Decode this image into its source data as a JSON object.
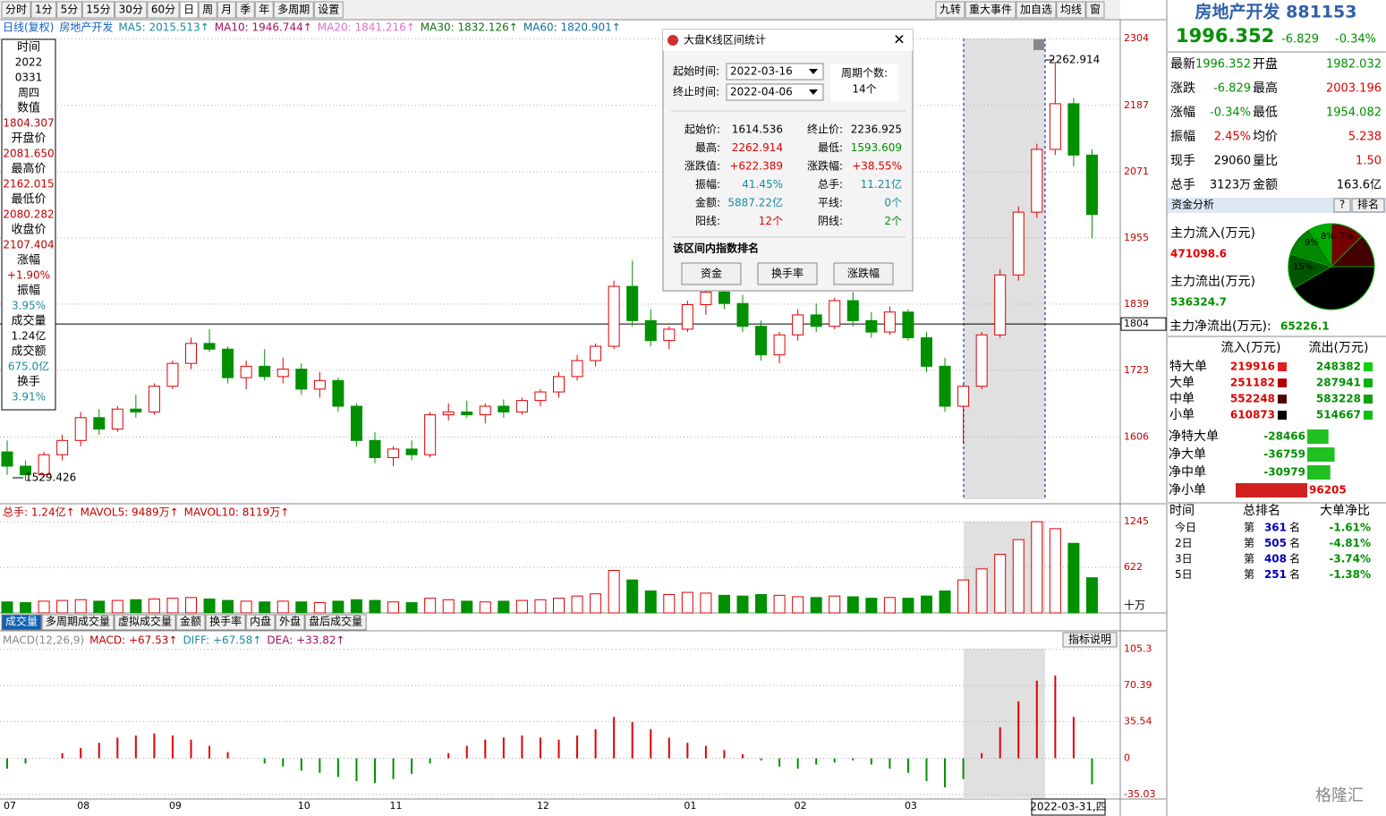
{
  "toolbar": {
    "left": [
      "分时",
      "1分",
      "5分",
      "15分",
      "30分",
      "60分",
      "日",
      "周",
      "月",
      "季",
      "年",
      "多周期",
      "设置"
    ],
    "right": [
      "九转",
      "重大事件",
      "加自选",
      "均线",
      "窗"
    ]
  },
  "price_header": [
    {
      "text": "日线(复权)",
      "color": "#1060c0"
    },
    {
      "text": "房地产开发",
      "color": "#1060c0"
    },
    {
      "text": "MA5: 2015.513↑",
      "color": "#1a8aa0"
    },
    {
      "text": "MA10: 1946.744↑",
      "color": "#a01060"
    },
    {
      "text": "MA20: 1841.216↑",
      "color": "#e070d0"
    },
    {
      "text": "MA30: 1832.126↑",
      "color": "#107010"
    },
    {
      "text": "MA60: 1820.901↑",
      "color": "#1070a0"
    }
  ],
  "info": [
    {
      "label": "时间",
      "value": [
        "2022",
        "0331",
        "周四"
      ],
      "color": "#000"
    },
    {
      "label": "数值",
      "value": [
        "1804.307"
      ],
      "color": "#c00000"
    },
    {
      "label": "开盘价",
      "value": [
        "2081.650"
      ],
      "color": "#c00000"
    },
    {
      "label": "最高价",
      "value": [
        "2162.015"
      ],
      "color": "#c00000"
    },
    {
      "label": "最低价",
      "value": [
        "2080.282"
      ],
      "color": "#c00000"
    },
    {
      "label": "收盘价",
      "value": [
        "2107.404"
      ],
      "color": "#c00000"
    },
    {
      "label": "涨幅",
      "value": [
        "+1.90%"
      ],
      "color": "#c00000"
    },
    {
      "label": "振幅",
      "value": [
        "3.95%"
      ],
      "color": "#1a8aa0"
    },
    {
      "label": "成交量",
      "value": [
        "1.24亿"
      ],
      "color": "#000"
    },
    {
      "label": "成交额",
      "value": [
        "675.0亿"
      ],
      "color": "#1a8aa0"
    },
    {
      "label": "换手",
      "value": [
        "3.91%"
      ],
      "color": "#1a8aa0"
    }
  ],
  "annotations": {
    "high": "2262.914",
    "low": "1529.426"
  },
  "chart_data": {
    "type": "candlestick",
    "categories": [
      "07",
      null,
      null,
      null,
      "08",
      null,
      null,
      null,
      null,
      "09",
      null,
      null,
      null,
      null,
      null,
      null,
      "10",
      null,
      null,
      null,
      null,
      "11",
      null,
      null,
      null,
      null,
      null,
      null,
      null,
      "12",
      null,
      null,
      null,
      null,
      null,
      null,
      null,
      "01",
      null,
      null,
      null,
      null,
      null,
      "02",
      null,
      null,
      null,
      null,
      null,
      "03",
      null,
      null,
      null,
      null,
      null,
      null,
      null,
      null,
      null,
      null
    ],
    "ohlc": [
      [
        1580,
        1600,
        1540,
        1555
      ],
      [
        1555,
        1565,
        1529.4,
        1540
      ],
      [
        1540,
        1580,
        1535,
        1575
      ],
      [
        1575,
        1610,
        1565,
        1600
      ],
      [
        1600,
        1650,
        1590,
        1640
      ],
      [
        1640,
        1655,
        1610,
        1620
      ],
      [
        1620,
        1660,
        1615,
        1655
      ],
      [
        1655,
        1680,
        1640,
        1650
      ],
      [
        1650,
        1700,
        1645,
        1695
      ],
      [
        1695,
        1740,
        1690,
        1735
      ],
      [
        1735,
        1780,
        1725,
        1770
      ],
      [
        1770,
        1795,
        1755,
        1760
      ],
      [
        1760,
        1765,
        1700,
        1710
      ],
      [
        1710,
        1740,
        1690,
        1730
      ],
      [
        1730,
        1760,
        1705,
        1712
      ],
      [
        1712,
        1745,
        1700,
        1725
      ],
      [
        1725,
        1735,
        1680,
        1690
      ],
      [
        1690,
        1720,
        1675,
        1705
      ],
      [
        1705,
        1710,
        1650,
        1660
      ],
      [
        1660,
        1665,
        1590,
        1600
      ],
      [
        1600,
        1615,
        1560,
        1570
      ],
      [
        1570,
        1590,
        1555,
        1585
      ],
      [
        1585,
        1600,
        1565,
        1575
      ],
      [
        1575,
        1650,
        1570,
        1645
      ],
      [
        1645,
        1665,
        1635,
        1650
      ],
      [
        1650,
        1670,
        1640,
        1645
      ],
      [
        1645,
        1665,
        1630,
        1660
      ],
      [
        1660,
        1672,
        1640,
        1650
      ],
      [
        1650,
        1675,
        1645,
        1670
      ],
      [
        1670,
        1690,
        1660,
        1685
      ],
      [
        1685,
        1720,
        1675,
        1712
      ],
      [
        1712,
        1750,
        1705,
        1740
      ],
      [
        1740,
        1770,
        1730,
        1765
      ],
      [
        1765,
        1880,
        1760,
        1870
      ],
      [
        1870,
        1915,
        1800,
        1810
      ],
      [
        1810,
        1830,
        1765,
        1775
      ],
      [
        1775,
        1800,
        1760,
        1795
      ],
      [
        1795,
        1845,
        1790,
        1838
      ],
      [
        1838,
        1880,
        1820,
        1860
      ],
      [
        1860,
        1870,
        1830,
        1840
      ],
      [
        1840,
        1855,
        1790,
        1800
      ],
      [
        1800,
        1810,
        1740,
        1750
      ],
      [
        1750,
        1790,
        1735,
        1785
      ],
      [
        1785,
        1830,
        1775,
        1820
      ],
      [
        1820,
        1840,
        1790,
        1800
      ],
      [
        1800,
        1850,
        1795,
        1845
      ],
      [
        1845,
        1860,
        1800,
        1810
      ],
      [
        1810,
        1825,
        1780,
        1790
      ],
      [
        1790,
        1835,
        1785,
        1825
      ],
      [
        1825,
        1830,
        1775,
        1780
      ],
      [
        1780,
        1790,
        1720,
        1730
      ],
      [
        1730,
        1745,
        1650,
        1660
      ],
      [
        1660,
        1700,
        1593.6,
        1695
      ],
      [
        1695,
        1790,
        1690,
        1785
      ],
      [
        1785,
        1900,
        1780,
        1890
      ],
      [
        1890,
        2010,
        1880,
        2000
      ],
      [
        2000,
        2120,
        1990,
        2110
      ],
      [
        2110,
        2262.9,
        2100,
        2190
      ],
      [
        2190,
        2200,
        2080,
        2100
      ],
      [
        2100,
        2110,
        1954,
        1996
      ]
    ],
    "up_color": "#e00000",
    "down_color": "#009000",
    "ylim": [
      1497,
      2309
    ],
    "yticks": [
      2304,
      2187,
      2071,
      1955,
      1839,
      1804,
      1723,
      1606
    ],
    "grid": true,
    "volume": [
      150,
      140,
      160,
      170,
      180,
      160,
      170,
      180,
      190,
      200,
      210,
      190,
      170,
      160,
      150,
      160,
      150,
      140,
      160,
      180,
      170,
      150,
      140,
      200,
      180,
      160,
      150,
      160,
      170,
      180,
      200,
      230,
      260,
      580,
      450,
      300,
      250,
      280,
      270,
      240,
      230,
      250,
      240,
      220,
      210,
      230,
      220,
      200,
      210,
      200,
      230,
      300,
      450,
      600,
      800,
      1000,
      1245,
      1150,
      950,
      480
    ],
    "vol_ylim": [
      0,
      1307
    ],
    "vol_yticks": [
      1245,
      622
    ],
    "macd": [
      -10,
      -5,
      0,
      5,
      10,
      15,
      20,
      22,
      24,
      22,
      18,
      12,
      6,
      0,
      -5,
      -8,
      -12,
      -14,
      -18,
      -22,
      -24,
      -20,
      -15,
      -5,
      5,
      12,
      18,
      20,
      22,
      20,
      18,
      22,
      28,
      40,
      35,
      28,
      20,
      15,
      12,
      8,
      4,
      -2,
      -8,
      -10,
      -6,
      -4,
      -2,
      -6,
      -10,
      -14,
      -22,
      -28,
      -20,
      5,
      30,
      55,
      75,
      80,
      40,
      -25
    ],
    "macd_ylim": [
      -39.3,
      120.6
    ],
    "macd_yticks": [
      105.3,
      70.39,
      35.54,
      0,
      -35.03
    ]
  },
  "x_axis": {
    "cursor_label": "2022-03-31,四"
  },
  "volume_panel": {
    "header": [
      {
        "text": "总手: 1.24亿↑",
        "color": "#c00000"
      },
      {
        "text": "MAVOL5: 9489万↑",
        "color": "#c00000"
      },
      {
        "text": "MAVOL10: 8119万↑",
        "color": "#c00000"
      }
    ],
    "unit": "十万",
    "tabs": [
      "成交量",
      "多周期成交量",
      "虚拟成交量",
      "金额",
      "换手率",
      "内盘",
      "外盘",
      "盘后成交量"
    ]
  },
  "macd_panel": {
    "header": [
      {
        "text": "MACD(12,26,9)",
        "color": "#888"
      },
      {
        "text": "MACD: +67.53↑",
        "color": "#c00000"
      },
      {
        "text": "DIFF: +67.58↑",
        "color": "#1a8aa0"
      },
      {
        "text": "DEA: +33.82↑",
        "color": "#a01060"
      }
    ],
    "help": "指标说明"
  },
  "watermark": "格隆汇",
  "dialog": {
    "title": "大盘K线区间统计",
    "start_label": "起始时间:",
    "start_date": "2022-03-16",
    "end_label": "终止时间:",
    "end_date": "2022-04-06",
    "period_label": "周期个数:",
    "period_count": "14个",
    "stats": [
      [
        {
          "label": "起始价:",
          "value": "1614.536",
          "color": "#000"
        },
        {
          "label": "终止价:",
          "value": "2236.925",
          "color": "#000"
        }
      ],
      [
        {
          "label": "最高:",
          "value": "2262.914",
          "color": "#e00000"
        },
        {
          "label": "最低:",
          "value": "1593.609",
          "color": "#009000"
        }
      ],
      [
        {
          "label": "涨跌值:",
          "value": "+622.389",
          "color": "#e00000"
        },
        {
          "label": "涨跌幅:",
          "value": "+38.55%",
          "color": "#e00000"
        }
      ],
      [
        {
          "label": "振幅:",
          "value": "41.45%",
          "color": "#1a8aa0"
        },
        {
          "label": "总手:",
          "value": "11.21亿",
          "color": "#1a8aa0"
        }
      ],
      [
        {
          "label": "金额:",
          "value": "5887.22亿",
          "color": "#1a8aa0"
        },
        {
          "label": "平线:",
          "value": "0个",
          "color": "#1a8aa0"
        }
      ],
      [
        {
          "label": "阳线:",
          "value": "12个",
          "color": "#e00000"
        },
        {
          "label": "阴线:",
          "value": "2个",
          "color": "#009000"
        }
      ]
    ],
    "rank_heading": "该区间内指数排名",
    "buttons": [
      "资金",
      "换手率",
      "涨跌幅"
    ]
  },
  "quote": {
    "title": "房地产开发 881153",
    "price": "1996.352",
    "change": "-6.829",
    "change_pct": "-0.34%",
    "rows": [
      [
        {
          "label": "最新",
          "value": "1996.352",
          "color": "#009000"
        },
        {
          "label": "开盘",
          "value": "1982.032",
          "color": "#009000"
        }
      ],
      [
        {
          "label": "涨跌",
          "value": "-6.829",
          "color": "#009000"
        },
        {
          "label": "最高",
          "value": "2003.196",
          "color": "#e00000"
        }
      ],
      [
        {
          "label": "涨幅",
          "value": "-0.34%",
          "color": "#009000"
        },
        {
          "label": "最低",
          "value": "1954.082",
          "color": "#009000"
        }
      ],
      [
        {
          "label": "振幅",
          "value": "2.45%",
          "color": "#e00000"
        },
        {
          "label": "均价",
          "value": "5.238",
          "color": "#e00000"
        }
      ],
      [
        {
          "label": "现手",
          "value": "29060",
          "color": "#000"
        },
        {
          "label": "量比",
          "value": "1.50",
          "color": "#e00000"
        }
      ],
      [
        {
          "label": "总手",
          "value": "3123万",
          "color": "#000"
        },
        {
          "label": "金额",
          "value": "163.6亿",
          "color": "#000"
        }
      ]
    ]
  },
  "funds": {
    "title": "资金分析",
    "help": "?",
    "rank": "排名",
    "inflow_label": "主力流入(万元)",
    "inflow": "471098.6",
    "outflow_label": "主力流出(万元)",
    "outflow": "536324.7",
    "pie_labels": [
      "8%",
      "7%",
      "9%",
      "15%"
    ],
    "net_label": "主力净流出(万元):",
    "net": "65226.1"
  },
  "flows": {
    "headers": [
      "流入(万元)",
      "流出(万元)"
    ],
    "rows": [
      {
        "label": "特大单",
        "in": "219916",
        "out": "248382"
      },
      {
        "label": "大单",
        "in": "251182",
        "out": "287941"
      },
      {
        "label": "中单",
        "in": "552248",
        "out": "583228"
      },
      {
        "label": "小单",
        "in": "610873",
        "out": "514667"
      }
    ],
    "net_labels": [
      "净特大单",
      "净大单",
      "净中单",
      "净小单"
    ],
    "net_values": [
      -28466,
      -36759,
      -30979,
      96205
    ]
  },
  "ranks": {
    "headers": [
      "时间",
      "总排名",
      "大单净比"
    ],
    "rows": [
      {
        "period": "今日",
        "pre": "第",
        "rank": "361",
        "post": "名",
        "ratio": "-1.61%"
      },
      {
        "period": "2日",
        "pre": "第",
        "rank": "505",
        "post": "名",
        "ratio": "-4.81%"
      },
      {
        "period": "3日",
        "pre": "第",
        "rank": "408",
        "post": "名",
        "ratio": "-3.74%"
      },
      {
        "period": "5日",
        "pre": "第",
        "rank": "251",
        "post": "名",
        "ratio": "-1.38%"
      }
    ]
  }
}
